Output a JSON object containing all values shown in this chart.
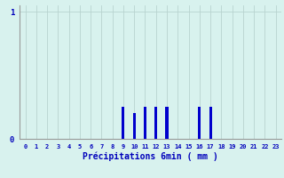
{
  "hours": [
    0,
    1,
    2,
    3,
    4,
    5,
    6,
    7,
    8,
    9,
    10,
    11,
    12,
    13,
    14,
    15,
    16,
    17,
    18,
    19,
    20,
    21,
    22,
    23
  ],
  "values": [
    0,
    0,
    0,
    0,
    0,
    0,
    0,
    0,
    0,
    0.25,
    0.2,
    0.25,
    0.25,
    0.25,
    0,
    0,
    0.25,
    0.25,
    0,
    0,
    0,
    0,
    0,
    0
  ],
  "bar_color": "#0000cc",
  "bg_color": "#d8f2ee",
  "grid_color": "#b8d4d0",
  "axis_color": "#999999",
  "text_color": "#0000bb",
  "xlabel": "Précipitations 6min ( mm )",
  "ylim": [
    0,
    1.05
  ],
  "xlim": [
    -0.5,
    23.5
  ]
}
